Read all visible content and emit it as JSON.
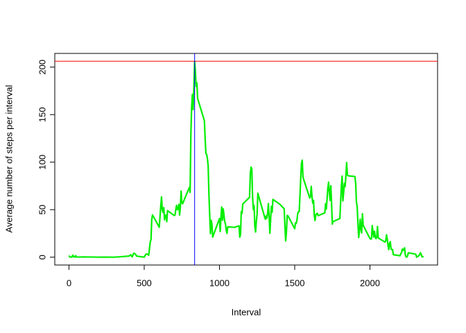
{
  "chart_data": {
    "type": "line",
    "xlabel": "Interval",
    "ylabel": "Average number of steps per interval",
    "x": [
      0,
      5,
      10,
      15,
      20,
      25,
      30,
      35,
      40,
      45,
      50,
      55,
      100,
      130,
      200,
      230,
      300,
      330,
      400,
      410,
      420,
      430,
      440,
      450,
      500,
      510,
      520,
      530,
      540,
      545,
      550,
      555,
      600,
      610,
      615,
      620,
      625,
      630,
      635,
      640,
      645,
      650,
      655,
      700,
      705,
      710,
      715,
      720,
      725,
      730,
      735,
      740,
      745,
      750,
      755,
      800,
      805,
      810,
      815,
      820,
      825,
      830,
      835,
      840,
      845,
      850,
      855,
      900,
      905,
      910,
      915,
      920,
      925,
      930,
      935,
      940,
      945,
      950,
      955,
      1000,
      1005,
      1010,
      1015,
      1020,
      1025,
      1030,
      1035,
      1040,
      1045,
      1050,
      1055,
      1100,
      1130,
      1135,
      1140,
      1145,
      1150,
      1155,
      1200,
      1205,
      1210,
      1215,
      1220,
      1225,
      1230,
      1235,
      1240,
      1245,
      1250,
      1255,
      1300,
      1305,
      1310,
      1315,
      1320,
      1325,
      1330,
      1335,
      1340,
      1345,
      1350,
      1355,
      1400,
      1430,
      1435,
      1440,
      1445,
      1450,
      1455,
      1500,
      1505,
      1510,
      1515,
      1520,
      1525,
      1530,
      1535,
      1540,
      1545,
      1550,
      1555,
      1600,
      1605,
      1610,
      1615,
      1620,
      1625,
      1630,
      1635,
      1640,
      1645,
      1650,
      1655,
      1700,
      1705,
      1710,
      1715,
      1720,
      1725,
      1730,
      1735,
      1740,
      1745,
      1750,
      1755,
      1800,
      1805,
      1810,
      1815,
      1820,
      1825,
      1830,
      1835,
      1840,
      1845,
      1850,
      1855,
      1900,
      1905,
      1910,
      1915,
      1920,
      1925,
      1930,
      1935,
      1940,
      1945,
      1950,
      1955,
      2000,
      2005,
      2010,
      2015,
      2020,
      2025,
      2030,
      2035,
      2040,
      2045,
      2050,
      2055,
      2100,
      2105,
      2110,
      2115,
      2120,
      2125,
      2130,
      2135,
      2140,
      2145,
      2150,
      2155,
      2200,
      2205,
      2210,
      2215,
      2220,
      2225,
      2230,
      2235,
      2240,
      2245,
      2250,
      2255,
      2300,
      2305,
      2310,
      2315,
      2320,
      2325,
      2330,
      2335,
      2340,
      2345,
      2350,
      2355
    ],
    "series": [
      {
        "color": "#00ee00",
        "values": [
          1.7,
          0.3,
          0.1,
          0.2,
          0.1,
          2.1,
          0.5,
          0.9,
          0,
          1.5,
          0.3,
          0.1,
          0.3,
          0.2,
          0,
          0.1,
          0,
          0.3,
          1.2,
          2.6,
          0.3,
          4.1,
          3.5,
          1.1,
          0,
          3,
          3.3,
          2.1,
          16,
          18.3,
          39.5,
          44.5,
          31.5,
          53.8,
          63.5,
          50,
          47.1,
          52.1,
          39.3,
          44,
          44.2,
          37.4,
          49,
          43.8,
          44.4,
          50.5,
          54.5,
          49.9,
          50.9,
          55.7,
          44.3,
          52.3,
          69.5,
          57.8,
          56.2,
          73.4,
          68.2,
          129.4,
          157.5,
          171.2,
          155.4,
          177.3,
          206.17,
          195.9,
          179.6,
          183.4,
          167,
          143.5,
          124,
          109.1,
          108.1,
          103.7,
          95.9,
          66.2,
          45.2,
          24.8,
          38.8,
          35,
          21.1,
          40.6,
          27,
          42.4,
          52.7,
          38.9,
          50.8,
          44.3,
          37.4,
          34.7,
          28.3,
          25.1,
          31.9,
          31.4,
          33,
          21,
          24,
          48,
          46,
          56,
          63,
          88,
          94.8,
          92.8,
          63.4,
          50.2,
          54.5,
          32.4,
          26.5,
          37.7,
          45.1,
          67.3,
          42.3,
          39.9,
          43.3,
          41,
          46.2,
          56.4,
          42.8,
          25.1,
          40,
          53.5,
          47.3,
          60.8,
          55.8,
          51,
          33,
          17.1,
          26.8,
          43.9,
          43.6,
          30,
          36.1,
          35.5,
          38.8,
          46,
          47.8,
          48,
          65.3,
          82.9,
          98.7,
          102.1,
          84,
          62.1,
          64.1,
          74.5,
          63.2,
          56.9,
          59.8,
          43.9,
          38.6,
          44.7,
          45.5,
          46.2,
          43.7,
          46.6,
          56.3,
          50.7,
          61.2,
          72.7,
          78.9,
          68.9,
          59.7,
          75.1,
          56.5,
          34.8,
          37.5,
          40.7,
          58,
          74.7,
          85.3,
          59.3,
          67.8,
          77.7,
          74.2,
          85.3,
          99.5,
          86.6,
          85.6,
          84.9,
          77.8,
          58,
          53.4,
          36.3,
          20.7,
          27.4,
          40,
          30.2,
          25.5,
          45.7,
          33.5,
          19.6,
          19,
          19.3,
          33.3,
          26.8,
          21.2,
          27.3,
          21.3,
          19.5,
          21.3,
          32.3,
          20.2,
          15.9,
          17.2,
          23.5,
          19.2,
          12.5,
          8,
          14.7,
          16.3,
          8.7,
          7.8,
          8.1,
          2.6,
          1.5,
          3.7,
          4.8,
          8.5,
          7.1,
          8.7,
          9.8,
          2.2,
          0.3,
          0.1,
          1.6,
          4.6,
          3.3,
          2.8,
          0,
          0.8,
          1,
          1.6,
          2.6,
          4.7,
          3.3,
          0.6,
          0.2,
          1.1
        ]
      }
    ],
    "hline": {
      "value": 206.17,
      "color": "#ff0000"
    },
    "vline": {
      "value": 835,
      "color": "#0000ff"
    },
    "xlim": [
      -94.2,
      2449.2
    ],
    "xticks": [
      0,
      500,
      1000,
      1500,
      2000
    ],
    "ylim": [
      -8.25,
      214.42
    ],
    "yticks": [
      0,
      50,
      100,
      150,
      200
    ]
  }
}
